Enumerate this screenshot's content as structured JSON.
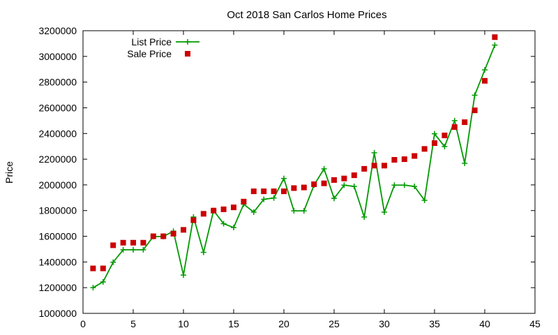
{
  "chart_data": {
    "type": "line",
    "title": "Oct 2018 San Carlos Home Prices",
    "xlabel": "",
    "ylabel": "Price",
    "xlim": [
      0,
      45
    ],
    "ylim": [
      1000000,
      3200000
    ],
    "xticks": [
      0,
      5,
      10,
      15,
      20,
      25,
      30,
      35,
      40,
      45
    ],
    "yticks": [
      1000000,
      1200000,
      1400000,
      1600000,
      1800000,
      2000000,
      2200000,
      2400000,
      2600000,
      2800000,
      3000000,
      3200000
    ],
    "grid": false,
    "legend_position": "top-left",
    "x": [
      1,
      2,
      3,
      4,
      5,
      6,
      7,
      8,
      9,
      10,
      11,
      12,
      13,
      14,
      15,
      16,
      17,
      18,
      19,
      20,
      21,
      22,
      23,
      24,
      25,
      26,
      27,
      28,
      29,
      30,
      31,
      32,
      33,
      34,
      35,
      36,
      37,
      38,
      39,
      40,
      41
    ],
    "series": [
      {
        "name": "List Price",
        "style": "line+cross",
        "color": "#009900",
        "values": [
          1200000,
          1245000,
          1398000,
          1495000,
          1495000,
          1495000,
          1598000,
          1598000,
          1640000,
          1298000,
          1750000,
          1475000,
          1800000,
          1698000,
          1668000,
          1850000,
          1788000,
          1888000,
          1898000,
          2050000,
          1798000,
          1798000,
          1998000,
          2125000,
          1895000,
          1998000,
          1988000,
          1750000,
          2250000,
          1788000,
          1998000,
          1998000,
          1988000,
          1880000,
          2398000,
          2298000,
          2500000,
          2168000,
          2698000,
          2895000,
          3088000
        ]
      },
      {
        "name": "Sale Price",
        "style": "square",
        "color": "#cc0000",
        "values": [
          1350000,
          1350000,
          1530000,
          1550000,
          1550000,
          1550000,
          1600000,
          1600000,
          1620000,
          1650000,
          1725000,
          1775000,
          1800000,
          1810000,
          1825000,
          1870000,
          1950000,
          1950000,
          1950000,
          1950000,
          1975000,
          1980000,
          2005000,
          2012000,
          2038000,
          2050000,
          2075000,
          2125000,
          2150000,
          2150000,
          2195000,
          2200000,
          2225000,
          2280000,
          2325000,
          2385000,
          2450000,
          2488000,
          2580000,
          2810000,
          3150000
        ]
      }
    ]
  }
}
